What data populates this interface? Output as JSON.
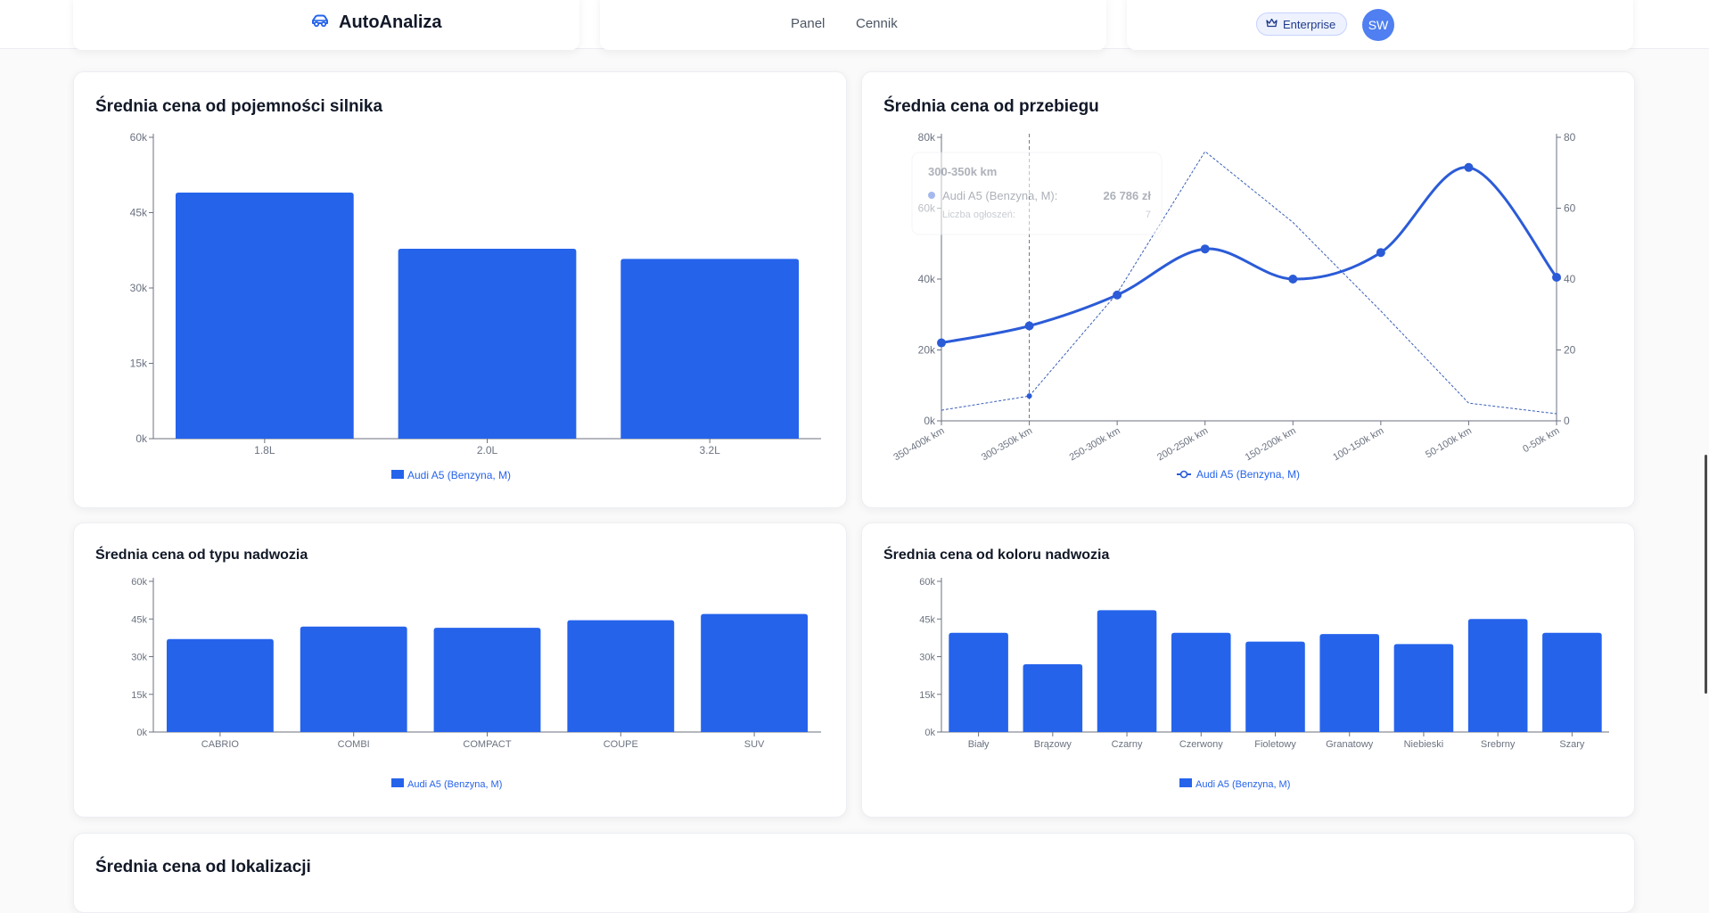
{
  "header": {
    "brand": "AutoAnaliza",
    "nav": [
      "Panel",
      "Cennik"
    ],
    "plan_badge": "Enterprise",
    "avatar_initials": "SW"
  },
  "colors": {
    "accent": "#2563eb",
    "line": "#2b5bd7",
    "axis": "#6b7280",
    "grid": "#e5e7eb"
  },
  "cards": {
    "engine": {
      "title": "Średnia cena od pojemności silnika"
    },
    "mileage": {
      "title": "Średnia cena od przebiegu"
    },
    "body": {
      "title": "Średnia cena od typu nadwozia"
    },
    "color": {
      "title": "Średnia cena od koloru nadwozia"
    },
    "location": {
      "title": "Średnia cena od lokalizacji"
    }
  },
  "tooltip": {
    "title": "300-350k km",
    "series_label": "Audi A5 (Benzyna, M):",
    "series_value": "26 786 zł",
    "count_label": "Liczba ogłoszeń:",
    "count_value": "7"
  },
  "chart_data": [
    {
      "type": "bar",
      "title": "Średnia cena od pojemności silnika",
      "categories": [
        "1.8L",
        "2.0L",
        "3.2L"
      ],
      "series": [
        {
          "name": "Audi A5 (Benzyna, M)",
          "values": [
            49000,
            37800,
            35800
          ]
        }
      ],
      "yticks": [
        "0k",
        "15k",
        "30k",
        "45k",
        "60k"
      ],
      "ylim": [
        0,
        60000
      ]
    },
    {
      "type": "line",
      "title": "Średnia cena od przebiegu",
      "categories": [
        "350-400k km",
        "300-350k km",
        "250-300k km",
        "200-250k km",
        "150-200k km",
        "100-150k km",
        "50-100k km",
        "0-50k km"
      ],
      "series": [
        {
          "name": "Audi A5 (Benzyna, M)",
          "values": [
            22000,
            26786,
            35500,
            48500,
            40000,
            47500,
            71500,
            40500
          ]
        },
        {
          "name": "",
          "axis": "right",
          "values": [
            3,
            7,
            36,
            76,
            56,
            31,
            5,
            2
          ]
        }
      ],
      "yticks": [
        "0k",
        "20k",
        "40k",
        "60k",
        "80k"
      ],
      "ylim": [
        0,
        80000
      ],
      "y2ticks": [
        "0",
        "20",
        "40",
        "60",
        "80"
      ],
      "y2lim": [
        0,
        80
      ],
      "highlight_index": 1
    },
    {
      "type": "bar",
      "title": "Średnia cena od typu nadwozia",
      "categories": [
        "CABRIO",
        "COMBI",
        "COMPACT",
        "COUPE",
        "SUV"
      ],
      "series": [
        {
          "name": "Audi A5 (Benzyna, M)",
          "values": [
            37000,
            42000,
            41500,
            44500,
            47000
          ]
        }
      ],
      "yticks": [
        "0k",
        "15k",
        "30k",
        "45k",
        "60k"
      ],
      "ylim": [
        0,
        60000
      ]
    },
    {
      "type": "bar",
      "title": "Średnia cena od koloru nadwozia",
      "categories": [
        "Biały",
        "Brązowy",
        "Czarny",
        "Czerwony",
        "Fioletowy",
        "Granatowy",
        "Niebieski",
        "Srebrny",
        "Szary"
      ],
      "series": [
        {
          "name": "Audi A5 (Benzyna, M)",
          "values": [
            39500,
            27000,
            48500,
            39500,
            36000,
            39000,
            35000,
            45000,
            39500
          ]
        }
      ],
      "yticks": [
        "0k",
        "15k",
        "30k",
        "45k",
        "60k"
      ],
      "ylim": [
        0,
        60000
      ]
    }
  ]
}
